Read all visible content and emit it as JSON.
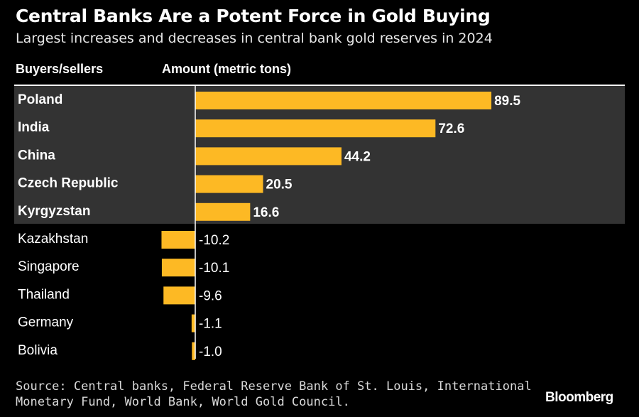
{
  "header": {
    "title": "Central Banks Are a Potent Force in Gold Buying",
    "subtitle": "Largest increases and decreases in central bank gold reserves in 2024"
  },
  "columns": {
    "left": "Buyers/sellers",
    "right": "Amount (metric tons)"
  },
  "footer": {
    "source_line1": "Source: Central banks, Federal Reserve Bank of St. Louis, International",
    "source_line2": "Monetary Fund, World Bank, World Gold Council.",
    "brand": "Bloomberg"
  },
  "colors": {
    "bar": "#fdb924",
    "background": "#000000",
    "highlight": "#333333",
    "text": "#ffffff"
  },
  "chart_data": {
    "type": "bar",
    "orientation": "horizontal",
    "categories": [
      "Poland",
      "India",
      "China",
      "Czech Republic",
      "Kyrgyzstan",
      "Kazakhstan",
      "Singapore",
      "Thailand",
      "Germany",
      "Bolivia"
    ],
    "values": [
      89.5,
      72.6,
      44.2,
      20.5,
      16.6,
      -10.2,
      -10.1,
      -9.6,
      -1.1,
      -1.0
    ],
    "labels": [
      "89.5",
      "72.6",
      "44.2",
      "20.5",
      "16.6",
      "-10.2",
      "-10.1",
      "-9.6",
      "-1.1",
      "-1.0"
    ],
    "highlighted": [
      true,
      true,
      true,
      true,
      true,
      false,
      false,
      false,
      false,
      false
    ],
    "xlim": [
      -10.2,
      89.5
    ],
    "grid": false,
    "legend": "none"
  }
}
